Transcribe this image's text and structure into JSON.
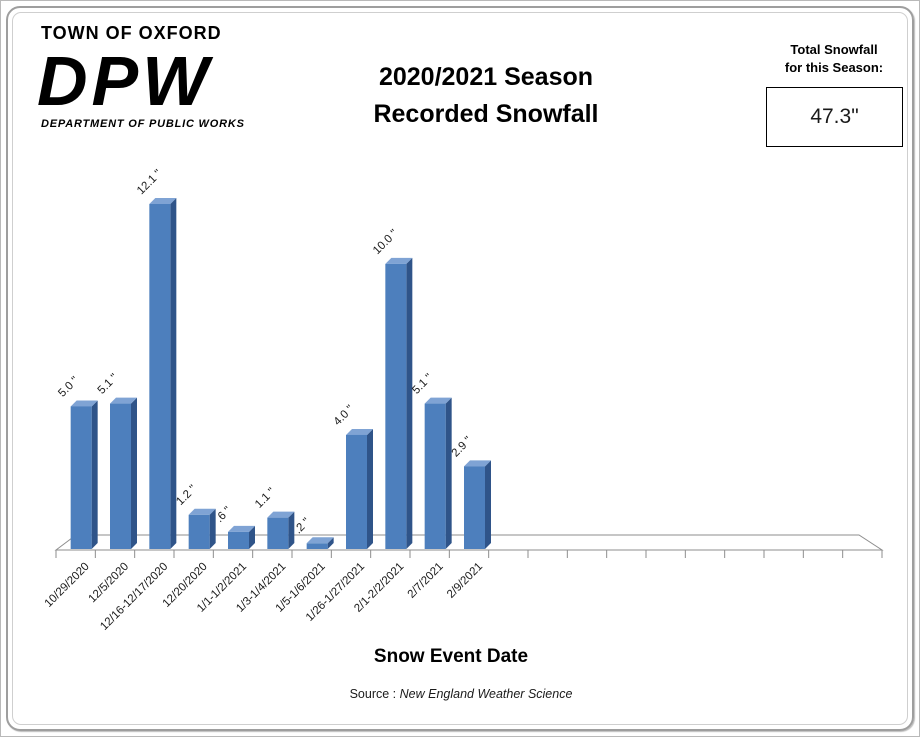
{
  "header": {
    "org": "TOWN OF OXFORD",
    "logo": "DPW",
    "org_sub": "DEPARTMENT OF PUBLIC WORKS",
    "title_line1": "2020/2021 Season",
    "title_line2": "Recorded Snowfall",
    "total_label_line1": "Total Snowfall",
    "total_label_line2": "for this Season:",
    "total_value": "47.3\""
  },
  "chart_data": {
    "type": "bar",
    "style": "3d-column",
    "title": "2020/2021 Season Recorded Snowfall",
    "xlabel": "Snow Event Date",
    "ylabel": "",
    "ylim": [
      0,
      12.5
    ],
    "grid": false,
    "legend": false,
    "axis_slots": 21,
    "categories": [
      "10/29/2020",
      "12/5/2020",
      "12/16-12/17/2020",
      "12/20/2020",
      "1/1-1/2/2021",
      "1/3-1/4/2021",
      "1/5-1/6/2021",
      "1/26-1/27/2021",
      "2/1-2/2/2021",
      "2/7/2021",
      "2/9/2021"
    ],
    "values": [
      5.0,
      5.1,
      12.1,
      1.2,
      0.6,
      1.1,
      0.2,
      4.0,
      10.0,
      5.1,
      2.9
    ],
    "value_labels": [
      "5.0 \"",
      "5.1 \"",
      "12.1 \"",
      "1.2 \"",
      ".6 \"",
      "1.1 \"",
      ".2 \"",
      "4.0 \"",
      "10.0 \"",
      "5.1 \"",
      "2.9 \""
    ],
    "total": "47.3\"",
    "colors": {
      "bar_face": "#4d7fbd",
      "bar_side": "#2f5489",
      "bar_top": "#7fa3d4",
      "axis": "#8e8e8e",
      "label_text": "#1a1a1a"
    }
  },
  "footer": {
    "xaxis_title": "Snow Event Date",
    "source_prefix": "Source :",
    "source_name": "New England Weather Science"
  }
}
